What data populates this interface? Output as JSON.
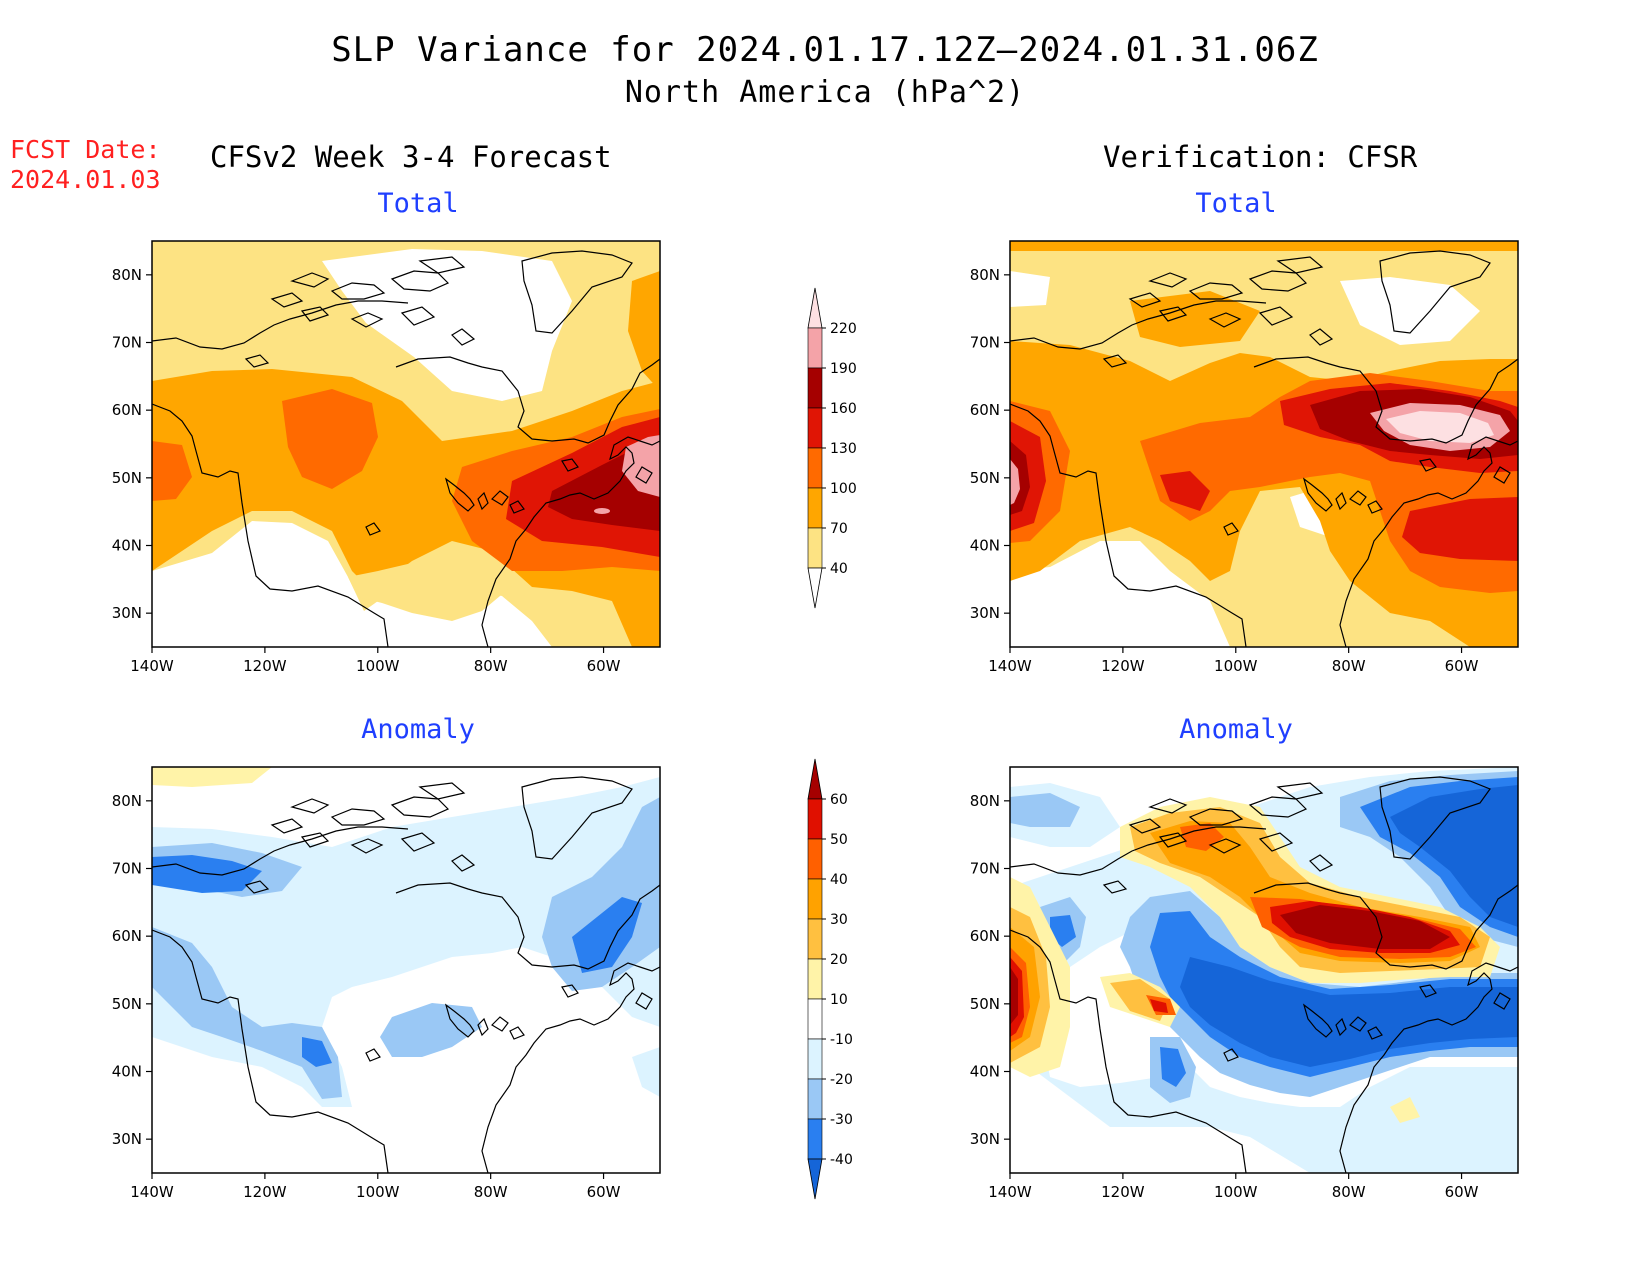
{
  "header": {
    "title": "SLP Variance for 2024.01.17.12Z—2024.01.31.06Z",
    "subtitle": "North America (hPa^2)",
    "fcst_label": "FCST Date:",
    "fcst_date": "2024.01.03",
    "left_column": "CFSv2 Week 3-4 Forecast",
    "right_column": "Verification: CFSR"
  },
  "panels": {
    "total_label": "Total",
    "anomaly_label": "Anomaly"
  },
  "axes": {
    "lat_ticks": [
      "80N",
      "70N",
      "60N",
      "50N",
      "40N",
      "30N"
    ],
    "lon_ticks": [
      "140W",
      "120W",
      "100W",
      "80W",
      "60W"
    ],
    "lat_values": [
      80,
      70,
      60,
      50,
      40,
      30
    ],
    "lon_values": [
      -140,
      -120,
      -100,
      -80,
      -60
    ],
    "lat_range": [
      25,
      85
    ],
    "lon_range": [
      -140,
      -50
    ]
  },
  "total_colorbar": {
    "levels": [
      "40",
      "70",
      "100",
      "130",
      "160",
      "190",
      "220"
    ],
    "colors": [
      "#ffffff",
      "#fde383",
      "#ffa600",
      "#ff6a00",
      "#e01505",
      "#a50000",
      "#f4a3a8",
      "#fde0e2"
    ]
  },
  "anomaly_colorbar": {
    "levels": [
      "-40",
      "-30",
      "-20",
      "-10",
      "10",
      "20",
      "30",
      "40",
      "50",
      "60"
    ],
    "colors": [
      "#1565d8",
      "#2a7ff0",
      "#9ac8f5",
      "#dcf3ff",
      "#ffffff",
      "#fff3a8",
      "#ffc040",
      "#ffa200",
      "#ff6000",
      "#e01000",
      "#a50000"
    ]
  },
  "colors": {
    "title_red": "#ff2020",
    "panel_title_blue": "#1f3fff"
  }
}
